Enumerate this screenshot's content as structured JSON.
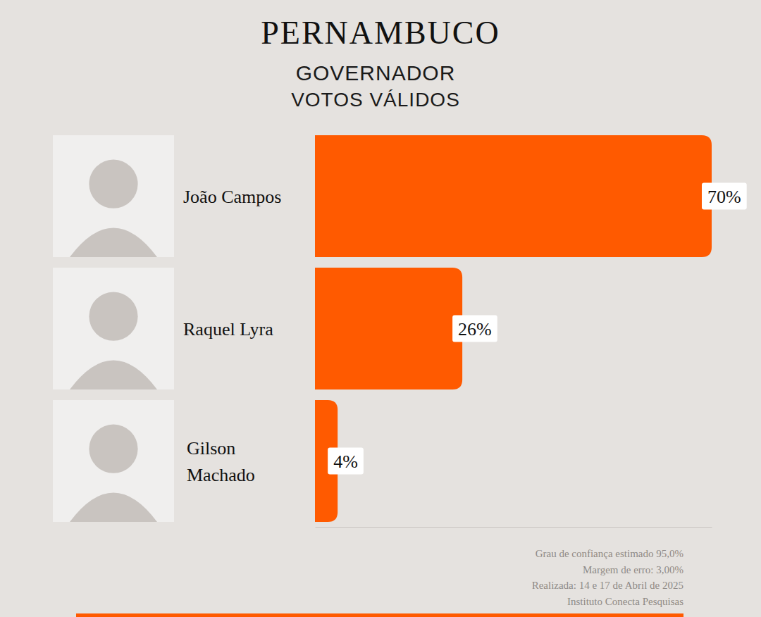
{
  "chart_data": {
    "type": "bar",
    "orientation": "horizontal",
    "title": "PERNAMBUCO",
    "subtitle": [
      "GOVERNADOR",
      "VOTOS VÁLIDOS"
    ],
    "categories": [
      "João Campos",
      "Raquel Lyra",
      "Gilson Machado"
    ],
    "values": [
      70,
      26,
      4
    ],
    "value_labels": [
      "70%",
      "26%",
      "4%"
    ],
    "data_labels": true,
    "color": "#ff5a00",
    "xlim": [
      0,
      70
    ],
    "xticks": [],
    "tick_labels": false,
    "grid": false,
    "annotations": [
      "Grau de confiança estimado 95,0%",
      "Margem de erro: 3,00%",
      "Realizada: 14 e 17 de Abril de 2025",
      "Instituto Conecta Pesquisas"
    ]
  }
}
